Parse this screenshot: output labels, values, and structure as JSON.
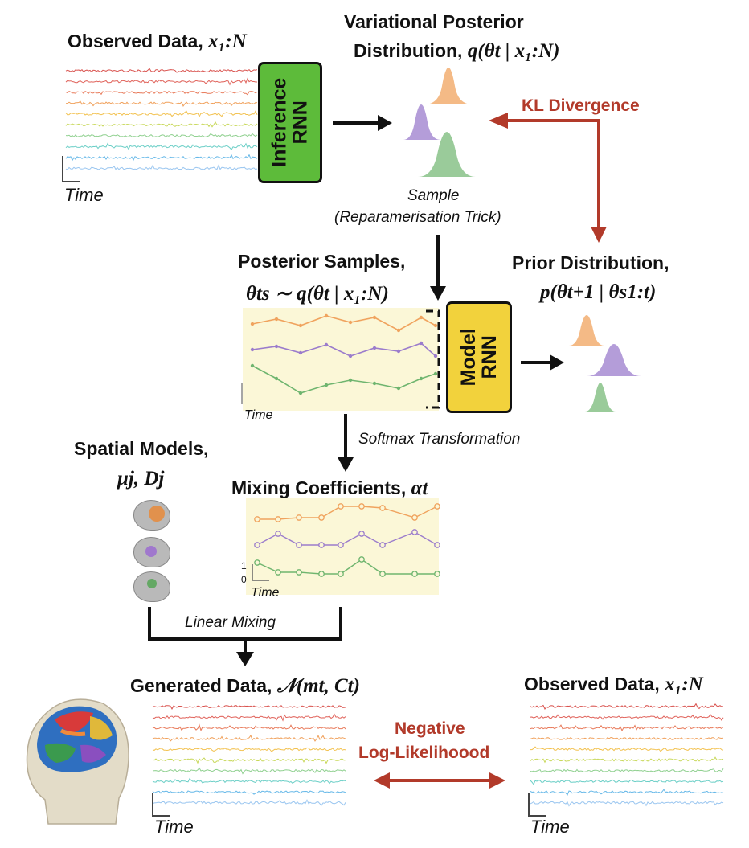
{
  "observed_top": {
    "title": "Observed Data,",
    "symbol": "x₁:N",
    "time_label": "Time"
  },
  "inference_rnn": {
    "line1": "Inference",
    "line2": "RNN"
  },
  "variational": {
    "title_line1": "Variational Posterior",
    "title_line2": "Distribution,",
    "symbol": "q(θt | x₁:N)"
  },
  "kl": {
    "label": "KL Divergence"
  },
  "sample": {
    "line1": "Sample",
    "line2": "(Reparamerisation Trick)"
  },
  "posterior_samples": {
    "title": "Posterior Samples,",
    "symbol": "θts ∼ q(θt | x₁:N)",
    "time_label": "Time"
  },
  "prior": {
    "title": "Prior Distribution,",
    "symbol": "p(θt+1 | θs1:t)"
  },
  "model_rnn": {
    "line1": "Model",
    "line2": "RNN"
  },
  "softmax": {
    "label": "Softmax Transformation"
  },
  "spatial": {
    "title": "Spatial Models,",
    "symbol": "μj, Dj"
  },
  "mixing": {
    "title": "Mixing Coefficients,",
    "symbol": "αt",
    "y_top": "1",
    "y_bottom": "0",
    "time_label": "Time"
  },
  "linear_mixing": {
    "label": "Linear Mixing"
  },
  "generated": {
    "title": "Generated Data,",
    "symbol": "𝒩(mt, Ct)",
    "time_label": "Time"
  },
  "observed_bottom": {
    "title": "Observed Data,",
    "symbol": "x₁:N",
    "time_label": "Time"
  },
  "nll": {
    "line1": "Negative",
    "line2": "Log-Likelihoood"
  },
  "colors": {
    "inference_rnn": "#5dbb3a",
    "model_rnn": "#f2d23c",
    "red_arrow": "#b23a2a",
    "orange": "#f0a35e",
    "purple": "#9b7ccc",
    "green": "#6fb56f",
    "panel": "#fbf7d7"
  }
}
